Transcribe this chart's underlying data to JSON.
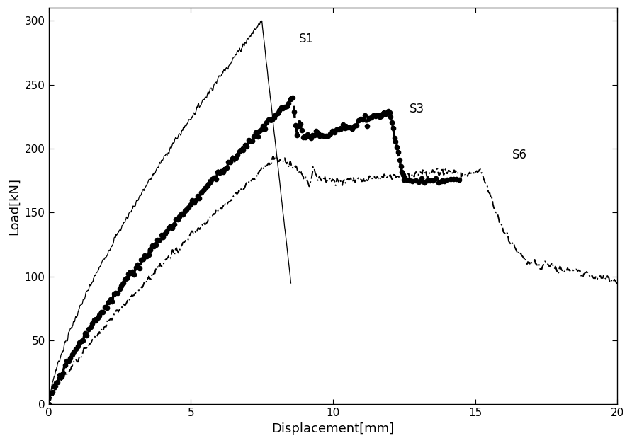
{
  "xlabel": "Displacement[mm]",
  "ylabel": "Load[kN]",
  "xlim": [
    0,
    20
  ],
  "ylim": [
    0,
    310
  ],
  "xticks": [
    0,
    5,
    10,
    15,
    20
  ],
  "yticks": [
    0,
    50,
    100,
    150,
    200,
    250,
    300
  ],
  "labels": {
    "S1": "S1",
    "S3": "S3",
    "S6": "S6"
  },
  "label_positions": {
    "S1": [
      8.8,
      283
    ],
    "S3": [
      12.7,
      228
    ],
    "S6": [
      16.3,
      192
    ]
  },
  "background": "#ffffff",
  "line_color": "#000000",
  "figsize": [
    8.92,
    6.26
  ],
  "dpi": 100
}
